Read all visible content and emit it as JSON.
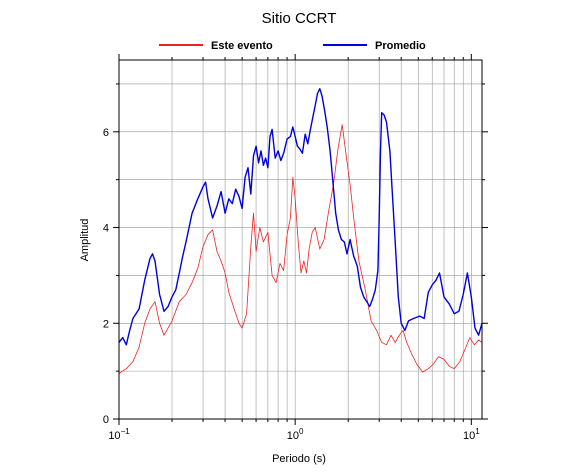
{
  "chart_data": {
    "type": "line",
    "title": "Sitio CCRT",
    "xlabel": "Periodo (s)",
    "ylabel": "Amplitud",
    "x_scale": "log",
    "xlim": [
      0.1,
      11.5
    ],
    "ylim": [
      0,
      7.5
    ],
    "grid": true,
    "legend_position": "top",
    "x_ticks": [
      {
        "value": 0.1,
        "base": "10",
        "exp": "−1"
      },
      {
        "value": 1,
        "base": "10",
        "exp": "0"
      },
      {
        "value": 10,
        "base": "10",
        "exp": "1"
      }
    ],
    "y_ticks": [
      0,
      2,
      4,
      6
    ],
    "series": [
      {
        "name": "Este evento",
        "color": "#ee2222",
        "points": [
          [
            0.1,
            0.95
          ],
          [
            0.11,
            1.05
          ],
          [
            0.12,
            1.2
          ],
          [
            0.13,
            1.5
          ],
          [
            0.14,
            2.0
          ],
          [
            0.15,
            2.3
          ],
          [
            0.16,
            2.45
          ],
          [
            0.17,
            2.0
          ],
          [
            0.18,
            1.75
          ],
          [
            0.2,
            2.05
          ],
          [
            0.22,
            2.45
          ],
          [
            0.24,
            2.6
          ],
          [
            0.26,
            2.85
          ],
          [
            0.28,
            3.15
          ],
          [
            0.3,
            3.6
          ],
          [
            0.32,
            3.85
          ],
          [
            0.34,
            3.95
          ],
          [
            0.36,
            3.5
          ],
          [
            0.38,
            3.3
          ],
          [
            0.4,
            3.05
          ],
          [
            0.42,
            2.65
          ],
          [
            0.45,
            2.3
          ],
          [
            0.48,
            2.0
          ],
          [
            0.5,
            1.9
          ],
          [
            0.53,
            2.2
          ],
          [
            0.56,
            3.6
          ],
          [
            0.58,
            4.3
          ],
          [
            0.6,
            3.5
          ],
          [
            0.63,
            4.0
          ],
          [
            0.66,
            3.7
          ],
          [
            0.7,
            3.9
          ],
          [
            0.74,
            3.0
          ],
          [
            0.78,
            2.85
          ],
          [
            0.82,
            3.25
          ],
          [
            0.86,
            3.1
          ],
          [
            0.9,
            3.85
          ],
          [
            0.94,
            4.2
          ],
          [
            0.97,
            5.05
          ],
          [
            1.0,
            4.6
          ],
          [
            1.04,
            3.7
          ],
          [
            1.08,
            3.05
          ],
          [
            1.12,
            3.3
          ],
          [
            1.16,
            3.05
          ],
          [
            1.2,
            3.55
          ],
          [
            1.25,
            3.9
          ],
          [
            1.3,
            4.0
          ],
          [
            1.38,
            3.55
          ],
          [
            1.46,
            3.75
          ],
          [
            1.55,
            4.35
          ],
          [
            1.65,
            4.9
          ],
          [
            1.75,
            5.65
          ],
          [
            1.85,
            6.15
          ],
          [
            1.95,
            5.5
          ],
          [
            2.05,
            4.9
          ],
          [
            2.15,
            4.2
          ],
          [
            2.3,
            3.3
          ],
          [
            2.5,
            2.7
          ],
          [
            2.7,
            2.05
          ],
          [
            2.9,
            1.85
          ],
          [
            3.1,
            1.6
          ],
          [
            3.3,
            1.55
          ],
          [
            3.5,
            1.75
          ],
          [
            3.7,
            1.6
          ],
          [
            3.9,
            1.75
          ],
          [
            4.1,
            1.85
          ],
          [
            4.3,
            1.6
          ],
          [
            4.6,
            1.35
          ],
          [
            4.9,
            1.15
          ],
          [
            5.3,
            0.98
          ],
          [
            5.7,
            1.05
          ],
          [
            6.1,
            1.15
          ],
          [
            6.5,
            1.3
          ],
          [
            7.0,
            1.25
          ],
          [
            7.5,
            1.1
          ],
          [
            8.0,
            1.05
          ],
          [
            8.6,
            1.2
          ],
          [
            9.2,
            1.45
          ],
          [
            9.8,
            1.7
          ],
          [
            10.4,
            1.55
          ],
          [
            11.0,
            1.65
          ],
          [
            11.5,
            1.6
          ]
        ]
      },
      {
        "name": "Promedio",
        "color": "#0000dd",
        "points": [
          [
            0.1,
            1.6
          ],
          [
            0.105,
            1.7
          ],
          [
            0.11,
            1.55
          ],
          [
            0.115,
            1.85
          ],
          [
            0.12,
            2.1
          ],
          [
            0.13,
            2.3
          ],
          [
            0.14,
            2.9
          ],
          [
            0.15,
            3.35
          ],
          [
            0.155,
            3.45
          ],
          [
            0.16,
            3.3
          ],
          [
            0.17,
            2.6
          ],
          [
            0.18,
            2.25
          ],
          [
            0.19,
            2.35
          ],
          [
            0.2,
            2.55
          ],
          [
            0.21,
            2.7
          ],
          [
            0.22,
            3.05
          ],
          [
            0.23,
            3.4
          ],
          [
            0.24,
            3.7
          ],
          [
            0.26,
            4.3
          ],
          [
            0.28,
            4.6
          ],
          [
            0.3,
            4.85
          ],
          [
            0.31,
            4.95
          ],
          [
            0.32,
            4.6
          ],
          [
            0.34,
            4.2
          ],
          [
            0.36,
            4.45
          ],
          [
            0.38,
            4.75
          ],
          [
            0.4,
            4.3
          ],
          [
            0.42,
            4.6
          ],
          [
            0.44,
            4.5
          ],
          [
            0.46,
            4.8
          ],
          [
            0.48,
            4.65
          ],
          [
            0.5,
            4.4
          ],
          [
            0.52,
            5.05
          ],
          [
            0.54,
            5.25
          ],
          [
            0.56,
            4.7
          ],
          [
            0.58,
            5.5
          ],
          [
            0.6,
            5.7
          ],
          [
            0.62,
            5.35
          ],
          [
            0.64,
            5.6
          ],
          [
            0.66,
            5.3
          ],
          [
            0.68,
            5.45
          ],
          [
            0.7,
            5.25
          ],
          [
            0.72,
            5.9
          ],
          [
            0.74,
            6.05
          ],
          [
            0.77,
            5.45
          ],
          [
            0.8,
            5.6
          ],
          [
            0.83,
            5.4
          ],
          [
            0.86,
            5.55
          ],
          [
            0.9,
            5.85
          ],
          [
            0.94,
            5.9
          ],
          [
            0.97,
            6.1
          ],
          [
            1.0,
            5.9
          ],
          [
            1.03,
            5.7
          ],
          [
            1.06,
            5.65
          ],
          [
            1.1,
            5.55
          ],
          [
            1.14,
            5.95
          ],
          [
            1.18,
            5.75
          ],
          [
            1.22,
            6.05
          ],
          [
            1.26,
            6.3
          ],
          [
            1.3,
            6.55
          ],
          [
            1.34,
            6.8
          ],
          [
            1.38,
            6.9
          ],
          [
            1.42,
            6.75
          ],
          [
            1.47,
            6.45
          ],
          [
            1.52,
            6.1
          ],
          [
            1.58,
            5.6
          ],
          [
            1.63,
            5.05
          ],
          [
            1.7,
            4.3
          ],
          [
            1.76,
            3.95
          ],
          [
            1.83,
            3.75
          ],
          [
            1.9,
            3.7
          ],
          [
            1.97,
            3.45
          ],
          [
            2.05,
            3.75
          ],
          [
            2.15,
            3.4
          ],
          [
            2.25,
            3.2
          ],
          [
            2.35,
            2.75
          ],
          [
            2.45,
            2.55
          ],
          [
            2.55,
            2.45
          ],
          [
            2.65,
            2.35
          ],
          [
            2.75,
            2.5
          ],
          [
            2.85,
            2.7
          ],
          [
            2.95,
            3.1
          ],
          [
            3.0,
            4.2
          ],
          [
            3.05,
            5.6
          ],
          [
            3.1,
            6.4
          ],
          [
            3.2,
            6.35
          ],
          [
            3.3,
            6.2
          ],
          [
            3.45,
            5.6
          ],
          [
            3.55,
            4.8
          ],
          [
            3.7,
            3.7
          ],
          [
            3.85,
            2.55
          ],
          [
            4.0,
            2.0
          ],
          [
            4.2,
            1.85
          ],
          [
            4.4,
            2.05
          ],
          [
            4.7,
            2.1
          ],
          [
            5.1,
            2.15
          ],
          [
            5.4,
            2.1
          ],
          [
            5.7,
            2.65
          ],
          [
            6.0,
            2.8
          ],
          [
            6.3,
            2.9
          ],
          [
            6.6,
            3.05
          ],
          [
            7.0,
            2.55
          ],
          [
            7.5,
            2.4
          ],
          [
            8.0,
            2.2
          ],
          [
            8.5,
            2.25
          ],
          [
            9.0,
            2.6
          ],
          [
            9.5,
            3.05
          ],
          [
            10.0,
            2.55
          ],
          [
            10.5,
            1.9
          ],
          [
            11.0,
            1.75
          ],
          [
            11.5,
            2.0
          ]
        ]
      }
    ]
  }
}
